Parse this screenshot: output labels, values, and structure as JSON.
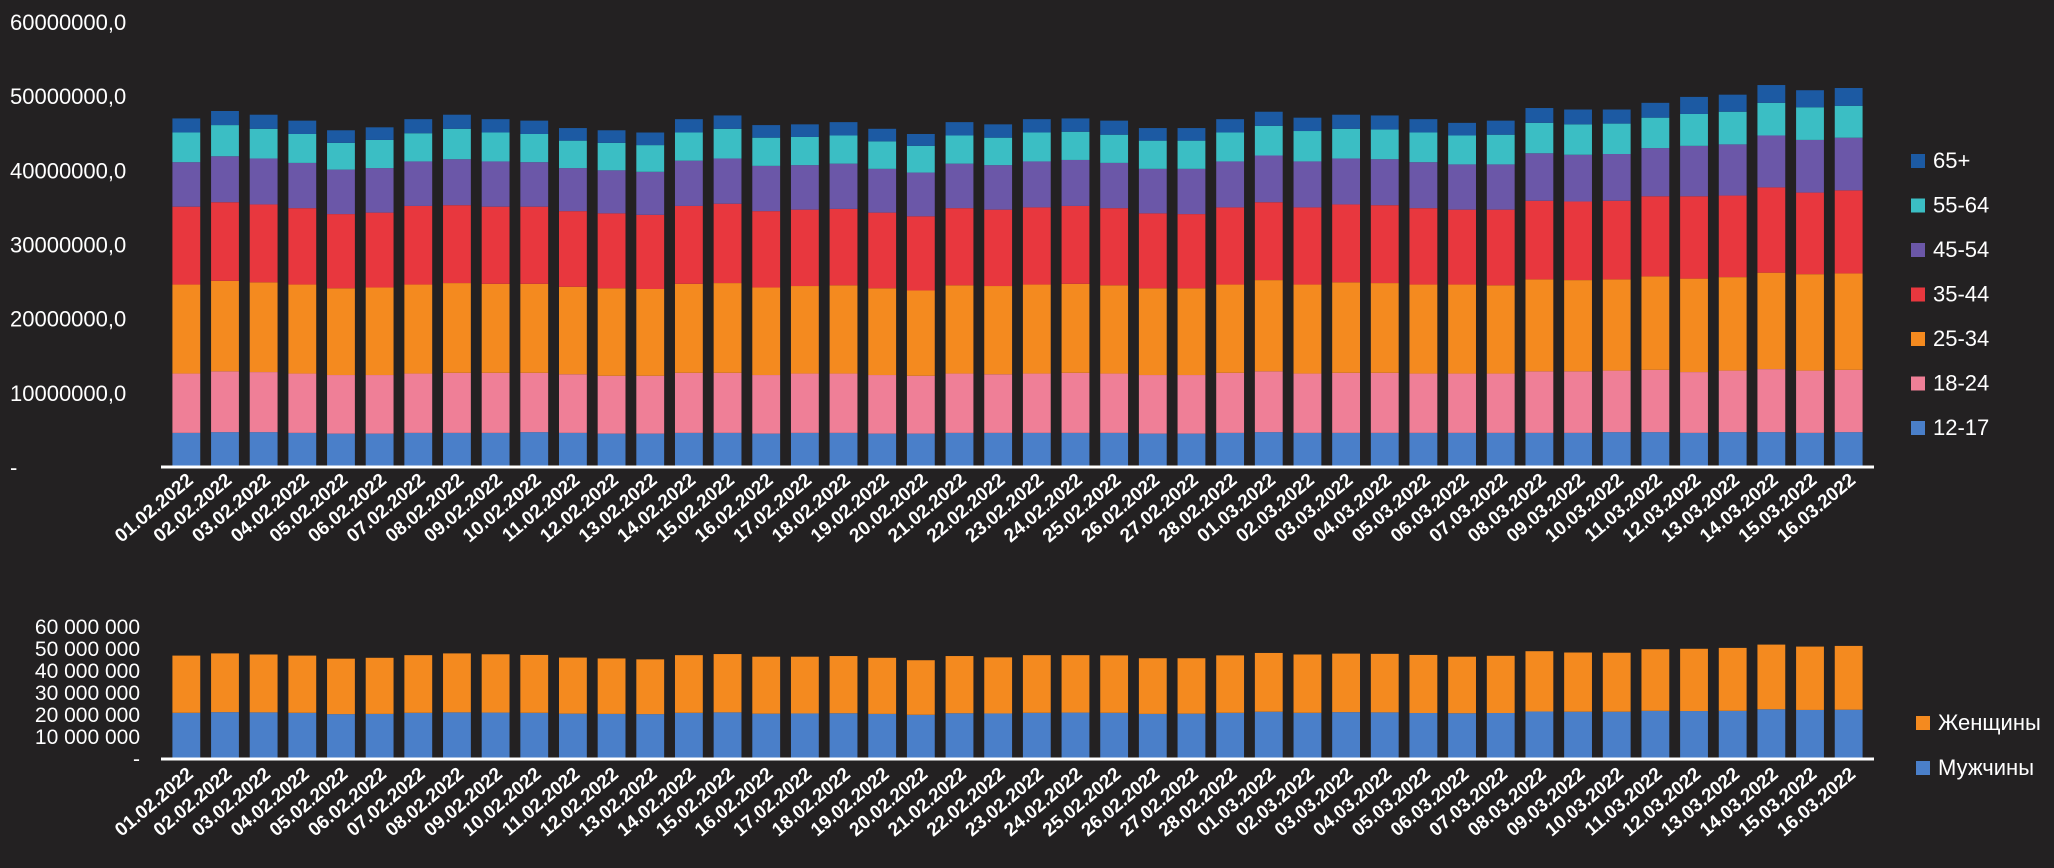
{
  "colors": {
    "12-17": "#4a7fc9",
    "18-24": "#ef7f97",
    "25-34": "#f48a1f",
    "35-44": "#e8373e",
    "45-54": "#6b57a8",
    "55-64": "#3bbec4",
    "65+": "#1c5aa3",
    "Женщины": "#f48a1f",
    "Мужчины": "#4a7fc9",
    "background": "#232122",
    "text": "#ffffff"
  },
  "chart_data": [
    {
      "type": "bar",
      "stacked": true,
      "categories": [
        "01.02.2022",
        "02.02.2022",
        "03.02.2022",
        "04.02.2022",
        "05.02.2022",
        "06.02.2022",
        "07.02.2022",
        "08.02.2022",
        "09.02.2022",
        "10.02.2022",
        "11.02.2022",
        "12.02.2022",
        "13.02.2022",
        "14.02.2022",
        "15.02.2022",
        "16.02.2022",
        "17.02.2022",
        "18.02.2022",
        "19.02.2022",
        "20.02.2022",
        "21.02.2022",
        "22.02.2022",
        "23.02.2022",
        "24.02.2022",
        "25.02.2022",
        "26.02.2022",
        "27.02.2022",
        "28.02.2022",
        "01.03.2022",
        "02.03.2022",
        "03.03.2022",
        "04.03.2022",
        "05.03.2022",
        "06.03.2022",
        "07.03.2022",
        "08.03.2022",
        "09.03.2022",
        "10.03.2022",
        "11.03.2022",
        "12.03.2022",
        "13.03.2022",
        "14.03.2022",
        "15.03.2022",
        "16.03.2022"
      ],
      "yticks": [
        "-",
        "10000000,0",
        "20000000,0",
        "30000000,0",
        "40000000,0",
        "50000000,0",
        "60000000,0"
      ],
      "ylim": [
        0,
        60000000
      ],
      "legend_position": "right",
      "series": [
        {
          "name": "12-17",
          "values": [
            4600000,
            4700000,
            4700000,
            4600000,
            4500000,
            4500000,
            4600000,
            4600000,
            4600000,
            4700000,
            4600000,
            4500000,
            4500000,
            4600000,
            4600000,
            4500000,
            4600000,
            4600000,
            4500000,
            4500000,
            4600000,
            4600000,
            4600000,
            4600000,
            4600000,
            4500000,
            4500000,
            4600000,
            4700000,
            4600000,
            4600000,
            4600000,
            4600000,
            4600000,
            4600000,
            4600000,
            4600000,
            4700000,
            4700000,
            4600000,
            4700000,
            4700000,
            4600000,
            4700000
          ]
        },
        {
          "name": "18-24",
          "values": [
            8000000,
            8200000,
            8100000,
            8000000,
            7900000,
            7900000,
            8000000,
            8100000,
            8100000,
            8000000,
            7900000,
            7800000,
            7800000,
            8100000,
            8100000,
            7900000,
            8000000,
            8000000,
            7900000,
            7800000,
            8000000,
            7900000,
            8000000,
            8100000,
            8000000,
            7900000,
            7900000,
            8100000,
            8200000,
            8000000,
            8100000,
            8100000,
            8000000,
            8000000,
            8000000,
            8300000,
            8300000,
            8300000,
            8400000,
            8200000,
            8300000,
            8500000,
            8400000,
            8400000
          ]
        },
        {
          "name": "25-34",
          "values": [
            12000000,
            12200000,
            12100000,
            12000000,
            11700000,
            11800000,
            12000000,
            12100000,
            12000000,
            12000000,
            11800000,
            11800000,
            11700000,
            12000000,
            12100000,
            11800000,
            11800000,
            11900000,
            11700000,
            11500000,
            11900000,
            11900000,
            12000000,
            12000000,
            11900000,
            11700000,
            11700000,
            11900000,
            12300000,
            12000000,
            12200000,
            12100000,
            12000000,
            12000000,
            11900000,
            12400000,
            12300000,
            12300000,
            12600000,
            12600000,
            12600000,
            13000000,
            13000000,
            13000000
          ]
        },
        {
          "name": "35-44",
          "values": [
            10500000,
            10600000,
            10500000,
            10300000,
            10000000,
            10100000,
            10600000,
            10500000,
            10400000,
            10400000,
            10200000,
            10100000,
            10000000,
            10500000,
            10700000,
            10300000,
            10300000,
            10300000,
            10200000,
            10000000,
            10400000,
            10300000,
            10400000,
            10500000,
            10400000,
            10100000,
            10000000,
            10400000,
            10500000,
            10400000,
            10500000,
            10500000,
            10300000,
            10100000,
            10200000,
            10600000,
            10600000,
            10600000,
            10800000,
            11100000,
            11000000,
            11500000,
            11000000,
            11200000
          ]
        },
        {
          "name": "45-54",
          "values": [
            6000000,
            6200000,
            6200000,
            6100000,
            6000000,
            6000000,
            6000000,
            6200000,
            6100000,
            6000000,
            5800000,
            5800000,
            5800000,
            6100000,
            6100000,
            6100000,
            6000000,
            6100000,
            5900000,
            5900000,
            6000000,
            6000000,
            6200000,
            6200000,
            6100000,
            6000000,
            6100000,
            6200000,
            6300000,
            6200000,
            6200000,
            6200000,
            6200000,
            6100000,
            6100000,
            6400000,
            6300000,
            6300000,
            6500000,
            6800000,
            6900000,
            7000000,
            7100000,
            7100000
          ]
        },
        {
          "name": "55-64",
          "values": [
            4000000,
            4200000,
            4000000,
            3900000,
            3600000,
            3800000,
            3800000,
            4100000,
            3900000,
            3800000,
            3700000,
            3700000,
            3600000,
            3800000,
            4000000,
            3800000,
            3800000,
            3800000,
            3700000,
            3600000,
            3800000,
            3700000,
            3900000,
            3800000,
            3800000,
            3800000,
            3800000,
            3900000,
            4000000,
            4100000,
            4000000,
            4000000,
            4000000,
            3900000,
            4000000,
            4100000,
            4100000,
            4100000,
            4100000,
            4300000,
            4400000,
            4400000,
            4400000,
            4300000
          ]
        },
        {
          "name": "65+",
          "values": [
            1900000,
            1900000,
            1900000,
            1800000,
            1700000,
            1700000,
            1900000,
            1900000,
            1800000,
            1800000,
            1700000,
            1700000,
            1700000,
            1800000,
            1800000,
            1700000,
            1700000,
            1800000,
            1700000,
            1600000,
            1800000,
            1800000,
            1800000,
            1800000,
            1900000,
            1700000,
            1700000,
            1800000,
            1900000,
            1800000,
            1900000,
            1900000,
            1800000,
            1700000,
            1900000,
            2000000,
            2000000,
            1900000,
            2000000,
            2300000,
            2300000,
            2400000,
            2300000,
            2400000
          ]
        }
      ]
    },
    {
      "type": "bar",
      "stacked": true,
      "categories": [
        "01.02.2022",
        "02.02.2022",
        "03.02.2022",
        "04.02.2022",
        "05.02.2022",
        "06.02.2022",
        "07.02.2022",
        "08.02.2022",
        "09.02.2022",
        "10.02.2022",
        "11.02.2022",
        "12.02.2022",
        "13.02.2022",
        "14.02.2022",
        "15.02.2022",
        "16.02.2022",
        "17.02.2022",
        "18.02.2022",
        "19.02.2022",
        "20.02.2022",
        "21.02.2022",
        "22.02.2022",
        "23.02.2022",
        "24.02.2022",
        "25.02.2022",
        "26.02.2022",
        "27.02.2022",
        "28.02.2022",
        "01.03.2022",
        "02.03.2022",
        "03.03.2022",
        "04.03.2022",
        "05.03.2022",
        "06.03.2022",
        "07.03.2022",
        "08.03.2022",
        "09.03.2022",
        "10.03.2022",
        "11.03.2022",
        "12.03.2022",
        "13.03.2022",
        "14.03.2022",
        "15.03.2022",
        "16.03.2022"
      ],
      "yticks": [
        "-",
        "10 000 000",
        "20 000 000",
        "30 000 000",
        "40 000 000",
        "50 000 000",
        "60 000 000"
      ],
      "ylim": [
        0,
        60000000
      ],
      "legend_position": "right",
      "series": [
        {
          "name": "Мужчины",
          "values": [
            21000000,
            21300000,
            21200000,
            21000000,
            20400000,
            20500000,
            21000000,
            21200000,
            21100000,
            21000000,
            20600000,
            20500000,
            20400000,
            21000000,
            21200000,
            20600000,
            20700000,
            20800000,
            20500000,
            20100000,
            20800000,
            20700000,
            21000000,
            21100000,
            21000000,
            20500000,
            20600000,
            21000000,
            21500000,
            21000000,
            21300000,
            21200000,
            20900000,
            20800000,
            20900000,
            21600000,
            21500000,
            21500000,
            21900000,
            21800000,
            21900000,
            22600000,
            22300000,
            22400000
          ]
        },
        {
          "name": "Женщины",
          "values": [
            26000000,
            26700000,
            26300000,
            26000000,
            25200000,
            25500000,
            26200000,
            26800000,
            26500000,
            26300000,
            25500000,
            25200000,
            24900000,
            26200000,
            26500000,
            25900000,
            25800000,
            26000000,
            25500000,
            24800000,
            26000000,
            25500000,
            26200000,
            26100000,
            26100000,
            25300000,
            25200000,
            26100000,
            26700000,
            26500000,
            26600000,
            26600000,
            26400000,
            25700000,
            26000000,
            27400000,
            26900000,
            26800000,
            28000000,
            28300000,
            28600000,
            29400000,
            28800000,
            29000000
          ]
        }
      ]
    }
  ]
}
